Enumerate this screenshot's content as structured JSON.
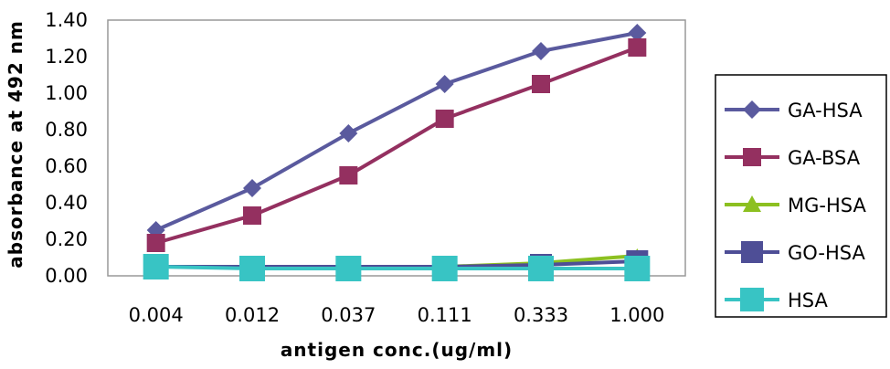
{
  "chart_data": {
    "type": "line",
    "xlabel": "antigen conc.(ug/ml)",
    "ylabel": "absorbance at 492 nm",
    "categories": [
      "0.004",
      "0.012",
      "0.037",
      "0.111",
      "0.333",
      "1.000"
    ],
    "yticks": [
      "0.00",
      "0.20",
      "0.40",
      "0.60",
      "0.80",
      "1.00",
      "1.20",
      "1.40"
    ],
    "ylim": [
      0,
      1.4
    ],
    "grid": false,
    "legend_position": "right",
    "series": [
      {
        "name": "GA-HSA",
        "values": [
          0.25,
          0.48,
          0.78,
          1.05,
          1.23,
          1.33
        ],
        "color": "#5a5a9e",
        "marker": "diamond"
      },
      {
        "name": "GA-BSA",
        "values": [
          0.18,
          0.33,
          0.55,
          0.86,
          1.05,
          1.25
        ],
        "color": "#943060",
        "marker": "square"
      },
      {
        "name": "MG-HSA",
        "values": [
          0.05,
          0.05,
          0.05,
          0.05,
          0.07,
          0.11
        ],
        "color": "#8cc020",
        "marker": "triangle"
      },
      {
        "name": "GO-HSA",
        "values": [
          0.05,
          0.05,
          0.05,
          0.05,
          0.06,
          0.08
        ],
        "color": "#4e4e96",
        "marker": "square"
      },
      {
        "name": "HSA",
        "values": [
          0.05,
          0.04,
          0.04,
          0.04,
          0.04,
          0.04
        ],
        "color": "#38c4c4",
        "marker": "square"
      }
    ]
  }
}
